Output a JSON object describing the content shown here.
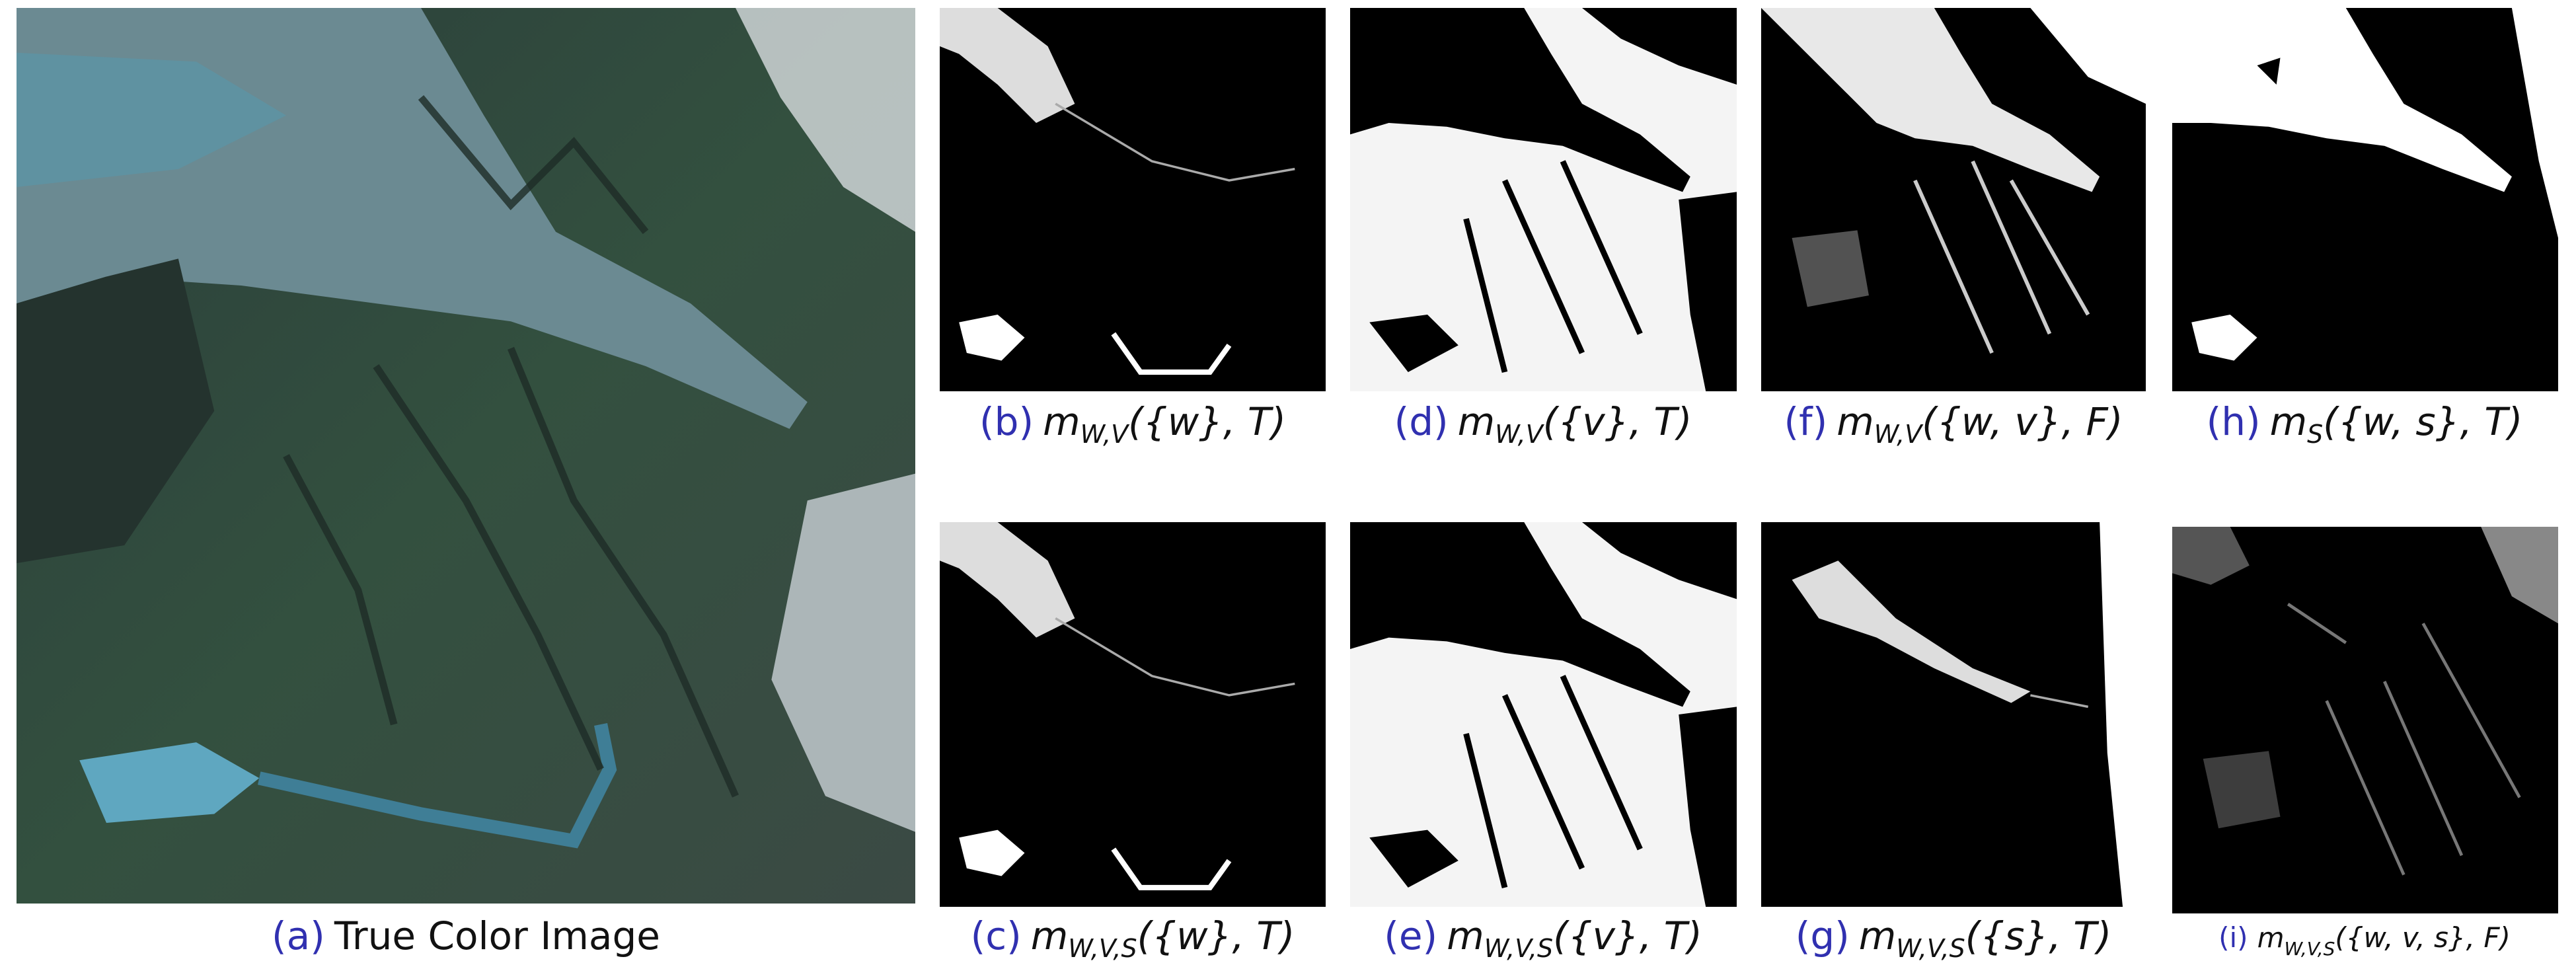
{
  "panels": [
    {
      "caption": {
        "label": "(a)",
        "text": "True Color Image"
      }
    },
    {
      "caption": {
        "label": "(b)",
        "symbol": "m",
        "subscript": "W,V",
        "argument": "({w}, T)"
      }
    },
    {
      "caption": {
        "label": "(c)",
        "symbol": "m",
        "subscript": "W,V,S",
        "argument": "({w}, T)"
      }
    },
    {
      "caption": {
        "label": "(d)",
        "symbol": "m",
        "subscript": "W,V",
        "argument": "({v}, T)"
      }
    },
    {
      "caption": {
        "label": "(e)",
        "symbol": "m",
        "subscript": "W,V,S",
        "argument": "({v}, T)"
      }
    },
    {
      "caption": {
        "label": "(f)",
        "symbol": "m",
        "subscript": "W,V",
        "argument": "({w, v}, F)"
      }
    },
    {
      "caption": {
        "label": "(g)",
        "symbol": "m",
        "subscript": "W,V,S",
        "argument": "({s}, T)"
      }
    },
    {
      "caption": {
        "label": "(h)",
        "symbol": "m",
        "subscript": "S",
        "argument": "({w, s}, T)"
      }
    },
    {
      "caption": {
        "label": "(i)",
        "symbol": "m",
        "subscript": "W,V,S",
        "argument": "({w, v, s}, F)"
      }
    }
  ]
}
